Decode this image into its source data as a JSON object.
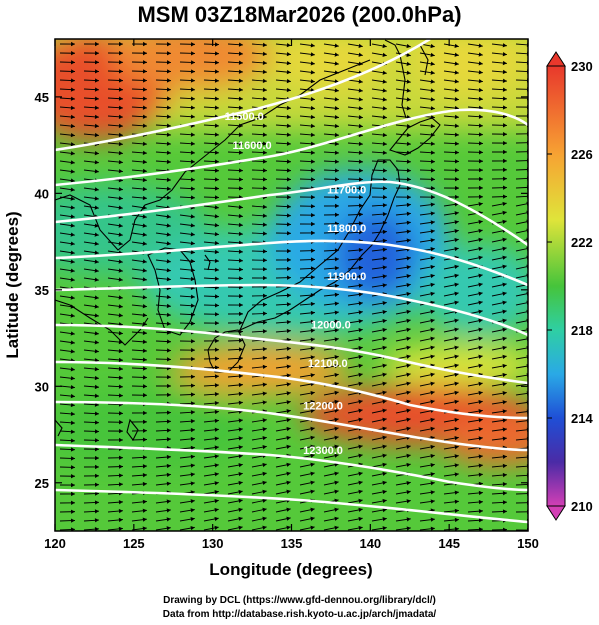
{
  "title": "MSM 03Z18Mar2026 (200.0hPa)",
  "axes": {
    "xlabel": "Longitude (degrees)",
    "ylabel": "Latitude  (degrees)",
    "x_ticks": [
      "120",
      "125",
      "130",
      "135",
      "140",
      "145",
      "150"
    ],
    "y_ticks": [
      "25",
      "30",
      "35",
      "40",
      "45"
    ]
  },
  "colorbar": {
    "ticks": [
      "230",
      "226",
      "222",
      "218",
      "214",
      "210"
    ],
    "min": 210,
    "max": 230,
    "unit": ""
  },
  "chart_data": {
    "type": "heatmap",
    "title": "MSM 03Z18Mar2026 (200.0hPa)",
    "xlabel": "Longitude (degrees)",
    "ylabel": "Latitude  (degrees)",
    "xlim": [
      120,
      150
    ],
    "ylim": [
      22.5,
      48
    ],
    "color_range": [
      210,
      230
    ],
    "contour_labels": [
      {
        "text": "11500.0",
        "lon": 132.0,
        "lat": 43.8
      },
      {
        "text": "11600.0",
        "lon": 132.5,
        "lat": 42.3
      },
      {
        "text": "11700.0",
        "lon": 138.5,
        "lat": 40.0
      },
      {
        "text": "11800.0",
        "lon": 138.5,
        "lat": 38.0
      },
      {
        "text": "11900.0",
        "lon": 138.5,
        "lat": 35.5
      },
      {
        "text": "12000.0",
        "lon": 137.5,
        "lat": 33.0
      },
      {
        "text": "12100.0",
        "lon": 137.3,
        "lat": 31.0
      },
      {
        "text": "12200.0",
        "lon": 137.0,
        "lat": 28.8
      },
      {
        "text": "12300.0",
        "lon": 137.0,
        "lat": 26.5
      }
    ]
  },
  "credits": {
    "line1": "Drawing by DCL (https://www.gfd-dennou.org/library/dcl/)",
    "line2": "Data from http://database.rish.kyoto-u.ac.jp/arch/jmadata/"
  }
}
